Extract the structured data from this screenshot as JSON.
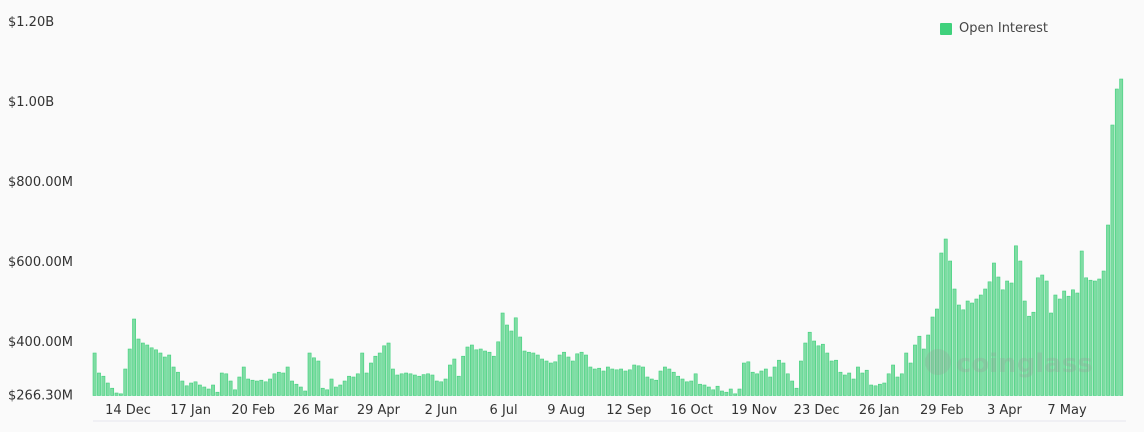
{
  "chart_data": {
    "type": "bar",
    "title": "",
    "xlabel": "",
    "ylabel": "",
    "ylim": [
      266.3,
      1200
    ],
    "y_unit": "M USD",
    "y_tick_values": [
      266.3,
      400,
      600,
      800,
      1000,
      1200
    ],
    "y_tick_labels": [
      "$266.30M",
      "$400.00M",
      "$600.00M",
      "$800.00M",
      "$1.00B",
      "$1.20B"
    ],
    "x_tick_labels": [
      "14 Dec",
      "17 Jan",
      "20 Feb",
      "26 Mar",
      "29 Apr",
      "2 Jun",
      "6 Jul",
      "9 Aug",
      "12 Sep",
      "16 Oct",
      "19 Nov",
      "23 Dec",
      "26 Jan",
      "29 Feb",
      "3 Apr",
      "7 May"
    ],
    "legend": {
      "position": "top-right"
    },
    "grid": false,
    "series": [
      {
        "name": "Open Interest",
        "color": "#3fd17c",
        "values": [
          370,
          320,
          312,
          295,
          282,
          270,
          268,
          330,
          380,
          455,
          405,
          395,
          390,
          383,
          378,
          370,
          360,
          365,
          335,
          322,
          300,
          288,
          295,
          298,
          290,
          285,
          280,
          290,
          272,
          320,
          318,
          300,
          278,
          310,
          335,
          305,
          302,
          300,
          302,
          298,
          305,
          318,
          322,
          320,
          335,
          300,
          292,
          285,
          275,
          370,
          358,
          350,
          282,
          278,
          305,
          285,
          290,
          300,
          312,
          310,
          318,
          370,
          320,
          345,
          362,
          370,
          388,
          395,
          330,
          315,
          318,
          320,
          318,
          315,
          312,
          316,
          318,
          315,
          300,
          298,
          305,
          340,
          355,
          312,
          362,
          385,
          390,
          378,
          380,
          375,
          372,
          362,
          398,
          470,
          440,
          425,
          458,
          410,
          375,
          372,
          370,
          365,
          355,
          350,
          345,
          348,
          365,
          372,
          360,
          350,
          368,
          372,
          365,
          335,
          330,
          332,
          325,
          335,
          330,
          328,
          330,
          325,
          328,
          340,
          338,
          335,
          310,
          305,
          302,
          325,
          335,
          330,
          322,
          312,
          305,
          298,
          300,
          318,
          292,
          290,
          285,
          278,
          287,
          275,
          272,
          280,
          268,
          280,
          345,
          348,
          322,
          318,
          325,
          330,
          310,
          335,
          352,
          345,
          318,
          300,
          282,
          350,
          395,
          422,
          400,
          388,
          392,
          370,
          350,
          352,
          322,
          315,
          320,
          305,
          335,
          320,
          327,
          290,
          288,
          292,
          295,
          318,
          340,
          310,
          318,
          370,
          345,
          390,
          412,
          380,
          415,
          460,
          480,
          620,
          655,
          600,
          530,
          490,
          478,
          500,
          495,
          505,
          515,
          530,
          548,
          595,
          560,
          528,
          550,
          545,
          638,
          600,
          500,
          462,
          472,
          558,
          565,
          550,
          470,
          515,
          505,
          525,
          512,
          528,
          520,
          625,
          558,
          552,
          550,
          555,
          575,
          690,
          940,
          1030,
          1055
        ]
      }
    ]
  },
  "watermark": "coinglass"
}
